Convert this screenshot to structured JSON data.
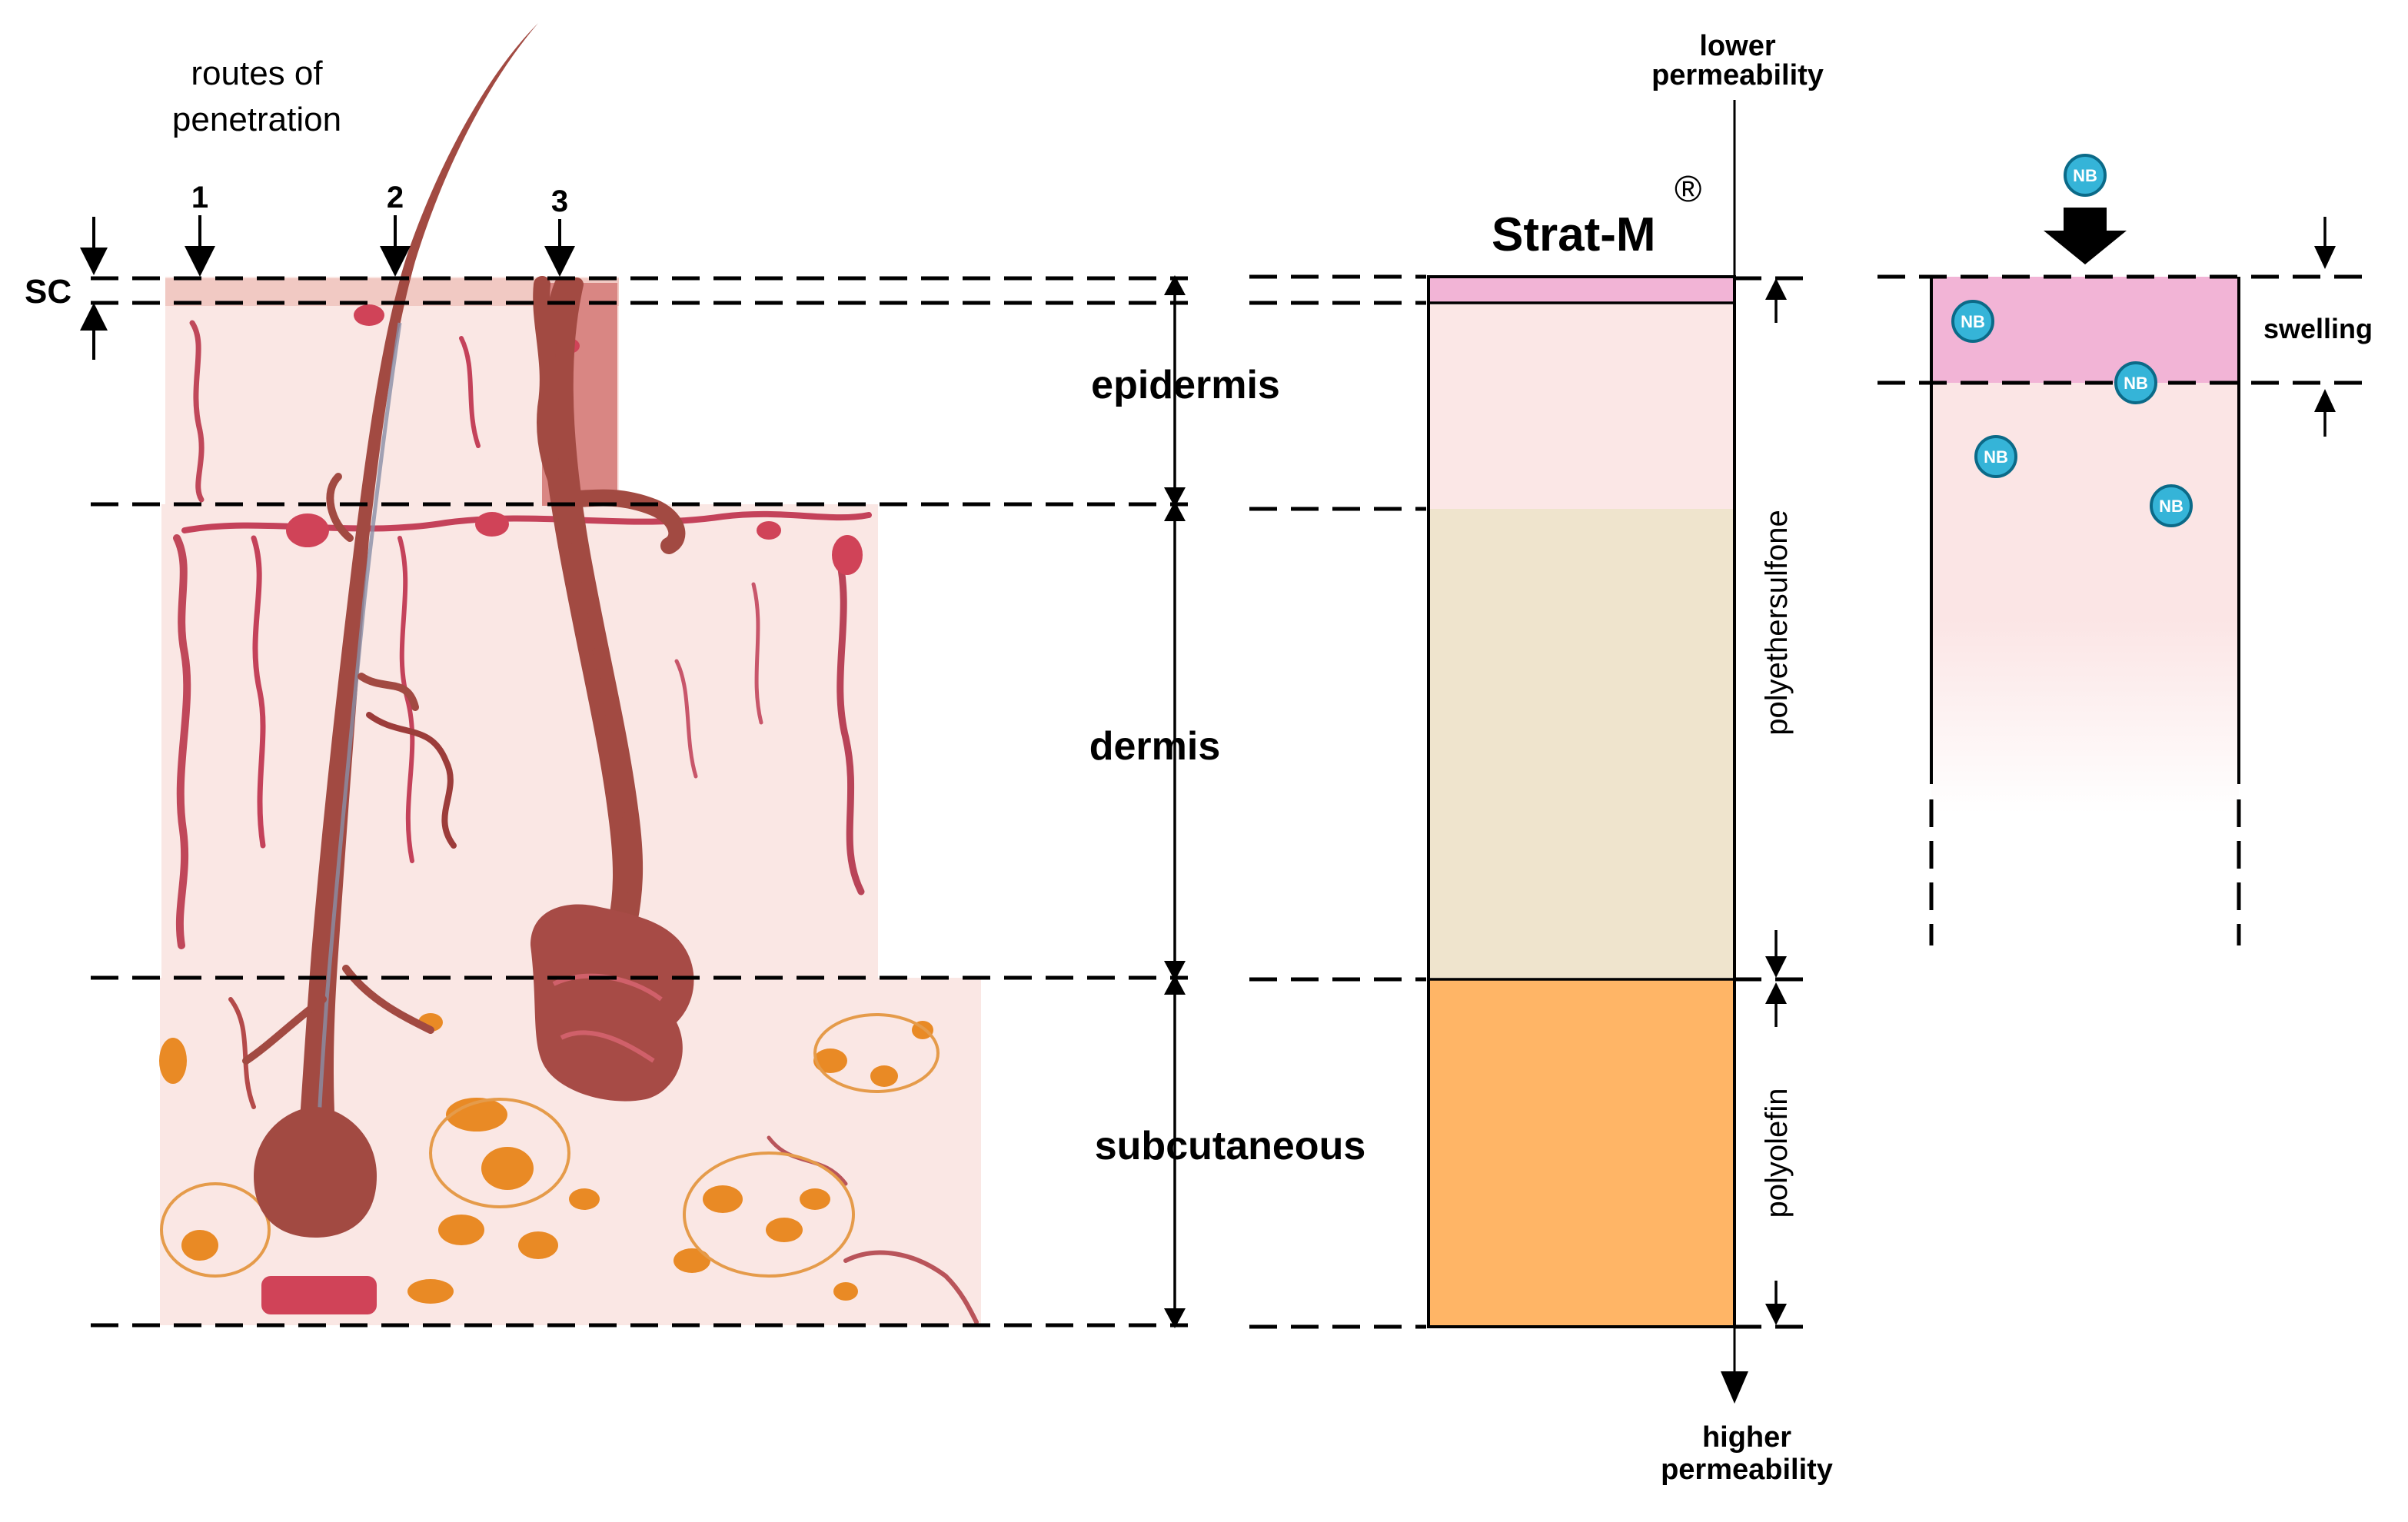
{
  "skin": {
    "routes_title_line1": "routes of",
    "routes_title_line2": "penetration",
    "route_numbers": [
      "1",
      "2",
      "3"
    ],
    "sc_label": "SC",
    "layers": {
      "epidermis": "epidermis",
      "dermis": "dermis",
      "subcutaneous": "subcutaneous"
    }
  },
  "membrane": {
    "title": "Strat-M",
    "trademark": "®",
    "top_label_line1": "lower",
    "top_label_line2": "permeability",
    "bottom_label_line1": "higher",
    "bottom_label_line2": "permeability",
    "polyethersulfone": "polyethersulfone",
    "polyolefin": "polyolefin"
  },
  "swelling_panel": {
    "swelling_label": "swelling",
    "particle_label": "NB"
  },
  "colors": {
    "skin_base": "#fae7e4",
    "hair": "#a24a42",
    "gland": "#a74b46",
    "vessel": "#c53a4f",
    "fat": "#e98a25",
    "sc_layer": "#f2b4d6",
    "epidermis_layer": "#fbe7e6",
    "dermis_layer": "#efe4cd",
    "subcutaneous_layer": "#ffb566",
    "particle": "#35b4d8"
  }
}
